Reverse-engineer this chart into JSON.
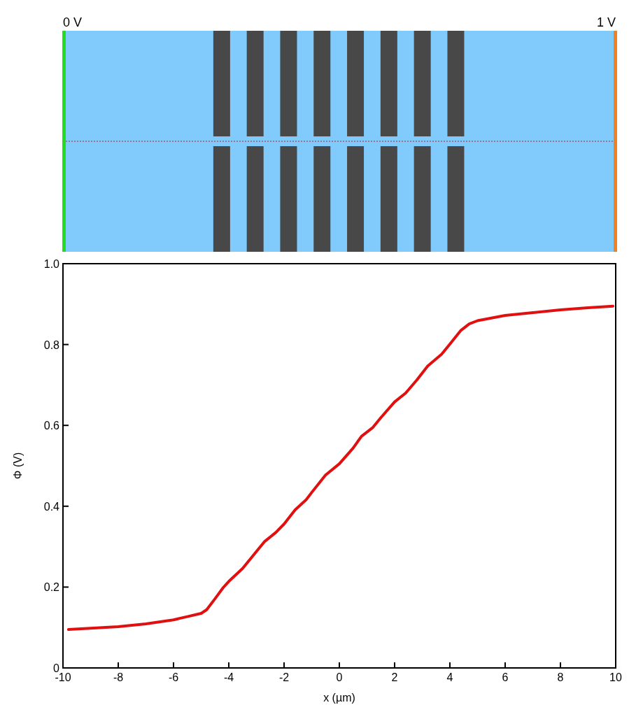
{
  "chart_data": {
    "type": "line",
    "xlabel": "x (µm)",
    "ylabel": "Φ (V)",
    "annotations": [
      "0 V",
      "1 V"
    ],
    "xlim": [
      -10,
      10
    ],
    "xticks": [
      -10,
      -8,
      -6,
      -4,
      -2,
      0,
      2,
      4,
      6,
      8,
      10
    ],
    "ylim": [
      0,
      1
    ],
    "yticks": [
      0,
      0.2,
      0.4,
      0.6,
      0.8,
      {
        "value": 1,
        "label": "1.0"
      }
    ],
    "grid": false,
    "line_style": "solid",
    "series": [
      {
        "color": "#e01010",
        "x": [
          -9.8,
          -9,
          -8,
          -7,
          -6,
          -5.5,
          -5,
          -4.8,
          -4.5,
          -4.2,
          -4,
          -3.5,
          -3,
          -2.7,
          -2.3,
          -2,
          -1.6,
          -1.2,
          -1,
          -0.5,
          0,
          0.5,
          0.8,
          1.2,
          1.5,
          2,
          2.4,
          2.8,
          3.2,
          3.7,
          4,
          4.4,
          4.7,
          5,
          6,
          7,
          8,
          9,
          9.9
        ],
        "values": [
          0.095,
          0.098,
          0.102,
          0.109,
          0.119,
          0.127,
          0.135,
          0.144,
          0.171,
          0.199,
          0.214,
          0.246,
          0.288,
          0.313,
          0.335,
          0.356,
          0.391,
          0.416,
          0.434,
          0.477,
          0.505,
          0.544,
          0.573,
          0.594,
          0.619,
          0.658,
          0.68,
          0.712,
          0.747,
          0.776,
          0.801,
          0.835,
          0.851,
          0.859,
          0.872,
          0.879,
          0.886,
          0.891,
          0.895
        ]
      }
    ]
  }
}
